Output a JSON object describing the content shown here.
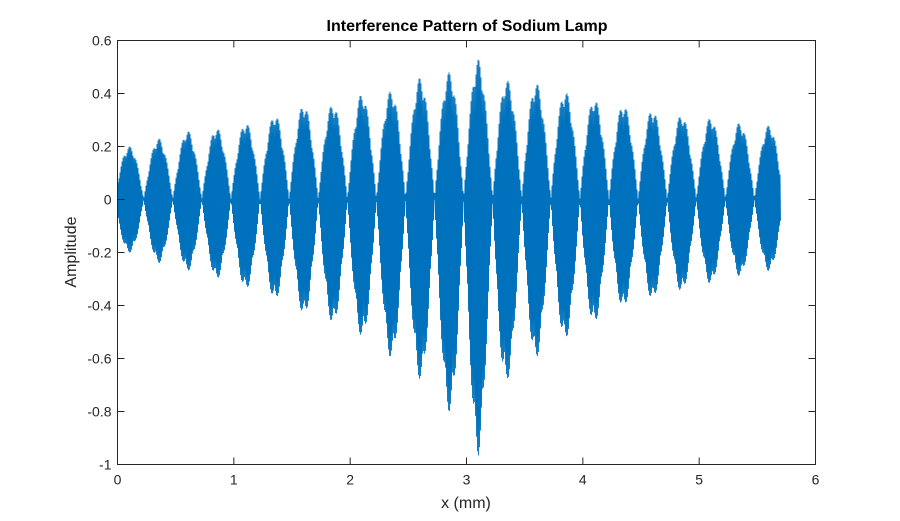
{
  "chart_data": {
    "type": "line",
    "title": "Interference Pattern of Sodium Lamp",
    "xlabel": "x (mm)",
    "ylabel": "Amplitude",
    "xlim": [
      0,
      6
    ],
    "ylim": [
      -1,
      0.6
    ],
    "xticks": [
      0,
      1,
      2,
      3,
      4,
      5,
      6
    ],
    "xtick_labels": [
      "0",
      "1",
      "2",
      "3",
      "4",
      "5",
      "6"
    ],
    "yticks": [
      -1,
      -0.8,
      -0.6,
      -0.4,
      -0.2,
      0,
      0.2,
      0.4,
      0.6
    ],
    "ytick_labels": [
      "-1",
      "-0.8",
      "-0.6",
      "-0.4",
      "-0.2",
      "0",
      "0.2",
      "0.4",
      "0.6"
    ],
    "grid": false,
    "box": true,
    "series": [
      {
        "color": "#0072bd",
        "x_range": [
          0,
          5.7
        ],
        "envelope": {
          "x": [
            0.1,
            0.35,
            0.6,
            0.85,
            1.1,
            1.35,
            1.6,
            1.85,
            2.1,
            2.35,
            2.6,
            2.85,
            3.1,
            3.35,
            3.6,
            3.85,
            4.1,
            4.35,
            4.6,
            4.85,
            5.1,
            5.35,
            5.6
          ],
          "upper": [
            0.2,
            0.23,
            0.26,
            0.27,
            0.29,
            0.32,
            0.36,
            0.36,
            0.4,
            0.41,
            0.46,
            0.48,
            0.53,
            0.45,
            0.44,
            0.41,
            0.38,
            0.36,
            0.34,
            0.32,
            0.31,
            0.29,
            0.28
          ],
          "lower": [
            -0.2,
            -0.24,
            -0.27,
            -0.3,
            -0.34,
            -0.38,
            -0.44,
            -0.47,
            -0.52,
            -0.6,
            -0.68,
            -0.8,
            -0.97,
            -0.68,
            -0.6,
            -0.53,
            -0.47,
            -0.41,
            -0.38,
            -0.35,
            -0.32,
            -0.29,
            -0.27
          ]
        }
      }
    ]
  }
}
